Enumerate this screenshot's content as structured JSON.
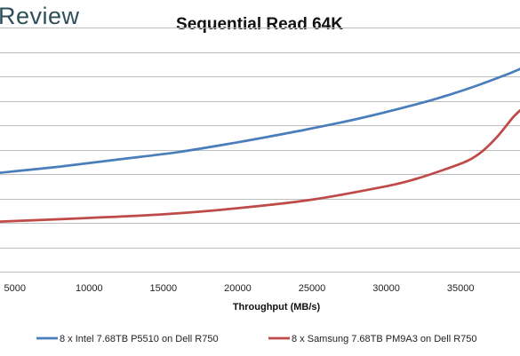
{
  "brand": "Review",
  "chart_data": {
    "type": "line",
    "title": "Sequential Read 64K",
    "xlabel": "Throughput (MB/s)",
    "ylabel": "",
    "xlim": [
      4000,
      39000
    ],
    "x_ticks": [
      5000,
      10000,
      15000,
      20000,
      25000,
      30000,
      35000
    ],
    "x_tick_labels": [
      "5000",
      "10000",
      "15000",
      "20000",
      "25000",
      "30000",
      "35000"
    ],
    "ylim": [
      0,
      10
    ],
    "y_gridlines": [
      0,
      1,
      2,
      3,
      4,
      5,
      6,
      7,
      8,
      9,
      10
    ],
    "grid": "horizontal",
    "legend_position": "bottom",
    "series": [
      {
        "name": "8 x Intel 7.68TB P5510 on Dell R750",
        "color": "#4a7ebb",
        "x": [
          4000,
          8000,
          12000,
          16000,
          20000,
          24000,
          28000,
          32000,
          34000,
          36000,
          38000,
          39000
        ],
        "y": [
          4.05,
          4.3,
          4.6,
          4.9,
          5.3,
          5.75,
          6.25,
          6.85,
          7.2,
          7.6,
          8.05,
          8.3
        ]
      },
      {
        "name": "8 x Samsung 7.68TB PM9A3 on Dell R750",
        "color": "#be4b48",
        "x": [
          4000,
          10000,
          15000,
          20000,
          25000,
          30000,
          32000,
          34000,
          35500,
          36500,
          37500,
          38500,
          39000
        ],
        "y": [
          2.05,
          2.2,
          2.35,
          2.6,
          2.95,
          3.5,
          3.8,
          4.2,
          4.55,
          4.95,
          5.55,
          6.3,
          6.6
        ]
      }
    ]
  }
}
